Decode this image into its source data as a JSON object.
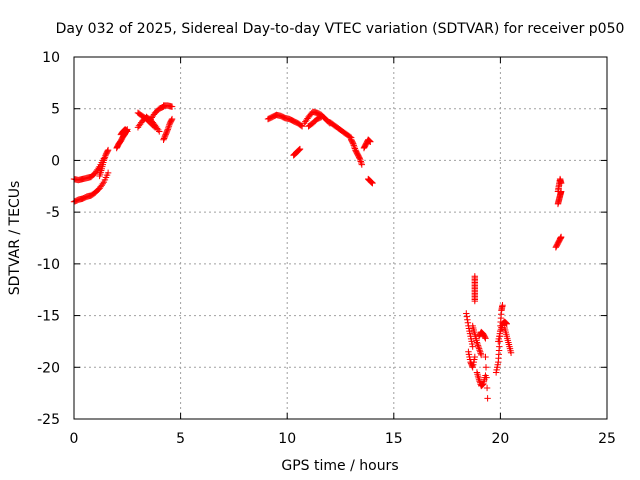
{
  "chart_data": {
    "type": "scatter",
    "title": "Day 032 of 2025, Sidereal Day-to-day VTEC variation (SDTVAR) for receiver p050",
    "xlabel": "GPS time / hours",
    "ylabel": "SDTVAR / TECUs",
    "xlim": [
      0,
      25
    ],
    "ylim": [
      -25,
      10
    ],
    "xticks": [
      0,
      5,
      10,
      15,
      20,
      25
    ],
    "yticks": [
      -25,
      -20,
      -15,
      -10,
      -5,
      0,
      5,
      10
    ],
    "grid": true,
    "marker": "plus",
    "color": "#ff0000",
    "series": [
      {
        "name": "SDTVAR",
        "segments": [
          {
            "x": [
              0.0,
              0.2,
              0.4,
              0.6,
              0.8,
              1.0,
              1.2,
              1.4
            ],
            "y": [
              -1.8,
              -1.9,
              -1.8,
              -1.7,
              -1.6,
              -1.2,
              -0.6,
              0.2
            ]
          },
          {
            "x": [
              0.0,
              0.2,
              0.4,
              0.6,
              0.8,
              1.0,
              1.2,
              1.4,
              1.6
            ],
            "y": [
              -4.0,
              -3.8,
              -3.7,
              -3.5,
              -3.4,
              -3.1,
              -2.7,
              -2.1,
              -1.2
            ]
          },
          {
            "x": [
              1.2,
              1.3,
              1.4,
              1.5,
              1.6
            ],
            "y": [
              -1.5,
              -0.8,
              0.0,
              0.6,
              1.0
            ]
          },
          {
            "x": [
              2.0,
              2.1,
              2.2,
              2.3,
              2.4,
              2.5
            ],
            "y": [
              1.2,
              1.6,
              1.9,
              2.3,
              2.6,
              3.0
            ]
          },
          {
            "x": [
              2.2,
              2.3,
              2.4,
              2.5
            ],
            "y": [
              2.5,
              2.8,
              3.0,
              2.8
            ]
          },
          {
            "x": [
              3.0,
              3.2,
              3.4,
              3.6,
              3.8,
              4.0
            ],
            "y": [
              3.2,
              3.8,
              4.2,
              3.9,
              3.4,
              2.8
            ]
          },
          {
            "x": [
              3.0,
              3.2,
              3.4,
              3.6,
              3.8
            ],
            "y": [
              4.6,
              4.3,
              4.0,
              3.6,
              3.2
            ]
          },
          {
            "x": [
              3.6,
              3.8,
              4.0,
              4.2
            ],
            "y": [
              4.0,
              4.6,
              5.0,
              5.2
            ]
          },
          {
            "x": [
              4.2,
              4.4,
              4.6
            ],
            "y": [
              5.3,
              5.3,
              5.2
            ]
          },
          {
            "x": [
              4.2,
              4.3,
              4.4,
              4.5,
              4.6
            ],
            "y": [
              2.0,
              2.5,
              3.0,
              3.6,
              4.0
            ]
          },
          {
            "x": [
              9.1,
              9.3,
              9.5,
              9.7,
              9.9,
              10.1,
              10.3,
              10.5,
              10.7
            ],
            "y": [
              4.0,
              4.2,
              4.4,
              4.3,
              4.1,
              4.0,
              3.8,
              3.6,
              3.3
            ]
          },
          {
            "x": [
              10.3,
              10.4,
              10.5,
              10.6
            ],
            "y": [
              0.5,
              0.7,
              0.9,
              1.1
            ]
          },
          {
            "x": [
              10.8,
              11.0,
              11.2,
              11.4,
              11.6,
              11.8,
              12.0
            ],
            "y": [
              3.6,
              4.2,
              4.7,
              4.6,
              4.4,
              4.0,
              3.6
            ]
          },
          {
            "x": [
              11.0,
              11.2,
              11.4,
              11.6
            ],
            "y": [
              3.3,
              3.6,
              4.0,
              4.2
            ]
          },
          {
            "x": [
              12.0,
              12.2,
              12.4,
              12.6,
              12.8,
              13.0
            ],
            "y": [
              3.7,
              3.4,
              3.1,
              2.8,
              2.5,
              2.2
            ]
          },
          {
            "x": [
              13.0,
              13.1,
              13.2,
              13.3,
              13.4,
              13.5
            ],
            "y": [
              2.0,
              1.6,
              1.0,
              0.6,
              0.2,
              -0.4
            ]
          },
          {
            "x": [
              13.6,
              13.7,
              13.8,
              13.9
            ],
            "y": [
              1.2,
              1.6,
              2.0,
              1.8
            ]
          },
          {
            "x": [
              13.8,
              13.9,
              14.0
            ],
            "y": [
              -1.8,
              -2.0,
              -2.2
            ]
          },
          {
            "x": [
              18.4,
              18.5,
              18.6,
              18.7
            ],
            "y": [
              -14.8,
              -16.0,
              -17.0,
              -18.0
            ]
          },
          {
            "x": [
              18.5,
              18.6,
              18.7,
              18.8
            ],
            "y": [
              -18.5,
              -19.5,
              -20.0,
              -19.0
            ]
          },
          {
            "x": [
              18.8,
              18.8,
              18.8,
              18.8,
              18.8
            ],
            "y": [
              -11.2,
              -11.8,
              -12.4,
              -13.0,
              -13.6
            ]
          },
          {
            "x": [
              18.7,
              18.8,
              18.9,
              19.0,
              19.1
            ],
            "y": [
              -16.0,
              -16.8,
              -17.6,
              -18.2,
              -18.8
            ]
          },
          {
            "x": [
              18.9,
              19.0,
              19.1,
              19.2,
              19.3
            ],
            "y": [
              -20.5,
              -21.2,
              -21.8,
              -21.6,
              -20.8
            ]
          },
          {
            "x": [
              19.0,
              19.1,
              19.2,
              19.3
            ],
            "y": [
              -17.0,
              -16.6,
              -16.8,
              -17.2
            ]
          },
          {
            "x": [
              19.3,
              19.4
            ],
            "y": [
              -19.0,
              -23.0
            ]
          },
          {
            "x": [
              19.8,
              19.9,
              19.95,
              20.0,
              20.05,
              20.1
            ],
            "y": [
              -20.5,
              -19.5,
              -18.0,
              -16.0,
              -14.5,
              -14.0
            ]
          },
          {
            "x": [
              19.9,
              20.0,
              20.1,
              20.2,
              20.3
            ],
            "y": [
              -17.5,
              -16.5,
              -15.8,
              -15.6,
              -15.8
            ]
          },
          {
            "x": [
              20.2,
              20.3,
              20.4,
              20.5
            ],
            "y": [
              -16.2,
              -17.0,
              -17.8,
              -18.6
            ]
          },
          {
            "x": [
              22.7,
              22.75,
              22.8,
              22.85
            ],
            "y": [
              -3.0,
              -2.4,
              -1.8,
              -2.2
            ]
          },
          {
            "x": [
              22.7,
              22.75,
              22.8,
              22.85
            ],
            "y": [
              -4.2,
              -3.8,
              -3.4,
              -3.0
            ]
          },
          {
            "x": [
              22.6,
              22.7,
              22.8,
              22.85
            ],
            "y": [
              -8.4,
              -8.0,
              -7.6,
              -7.4
            ]
          }
        ]
      }
    ]
  }
}
